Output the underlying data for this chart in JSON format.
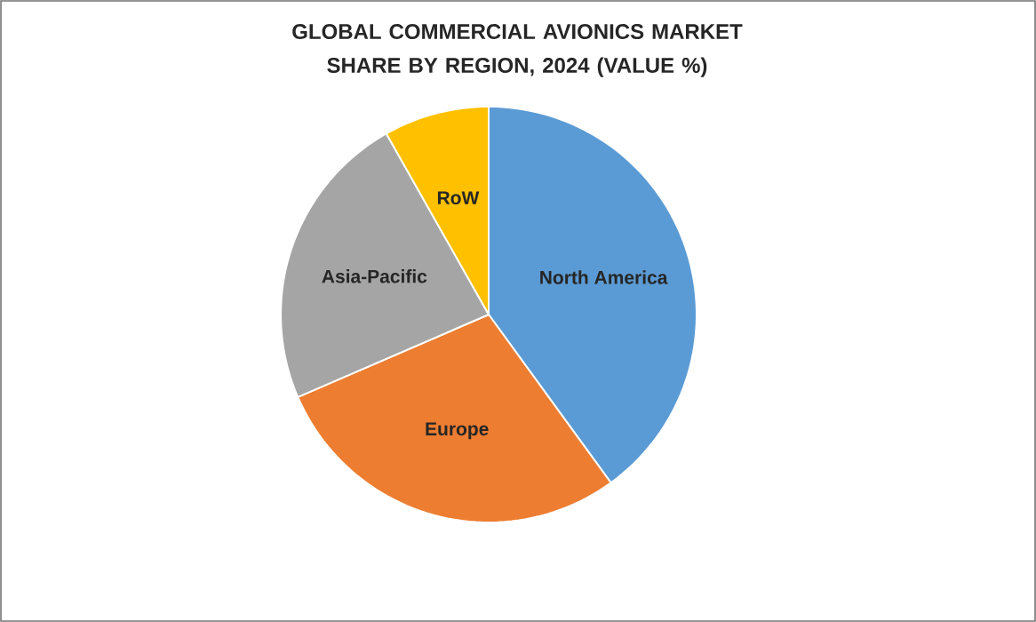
{
  "chart_data": {
    "type": "pie",
    "title": "GLOBAL COMMERCIAL AVIONICS MARKET SHARE BY REGION, 2024 (VALUE %)",
    "categories": [
      "North America",
      "Europe",
      "Asia-Pacific",
      "RoW"
    ],
    "values": [
      40,
      28.5,
      23.3,
      8.2
    ],
    "colors": [
      "#5b9bd5",
      "#ed7d31",
      "#a5a5a5",
      "#ffc000"
    ]
  }
}
